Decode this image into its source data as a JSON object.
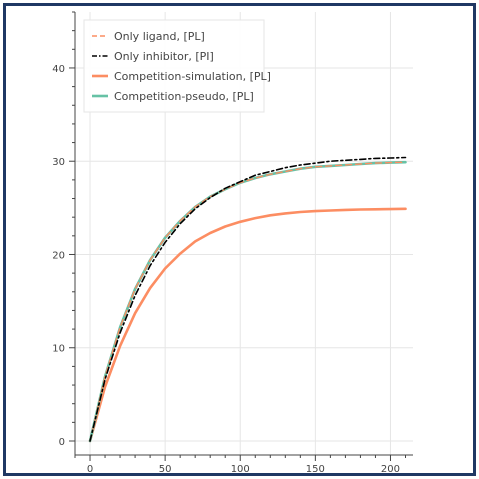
{
  "chart_data": {
    "type": "line",
    "title": "",
    "xlabel": "",
    "ylabel": "",
    "xlim": [
      -10,
      215
    ],
    "ylim": [
      -1.5,
      46
    ],
    "x_ticks": [
      0,
      50,
      100,
      150,
      200
    ],
    "y_ticks": [
      0,
      10,
      20,
      30,
      40
    ],
    "x_tick_labels": [
      "0",
      "50",
      "100",
      "150",
      "200"
    ],
    "y_tick_labels": [
      "0",
      "10",
      "20",
      "30",
      "40"
    ],
    "grid": true,
    "legend_position": "top-left",
    "x": [
      0,
      10,
      20,
      30,
      40,
      50,
      60,
      70,
      80,
      90,
      100,
      110,
      120,
      130,
      140,
      150,
      160,
      170,
      180,
      190,
      200,
      210
    ],
    "series": [
      {
        "name": "Only ligand, [PL]",
        "color": "#fc8d62",
        "style": "dashed",
        "values": [
          0,
          6.9,
          12.2,
          16.3,
          19.4,
          21.8,
          23.6,
          25.1,
          26.2,
          27.0,
          27.7,
          28.2,
          28.6,
          28.9,
          29.2,
          29.4,
          29.5,
          29.6,
          29.7,
          29.8,
          29.85,
          29.9
        ]
      },
      {
        "name": "Only inhibitor, [PI]",
        "color": "#000000",
        "style": "dashdot",
        "values": [
          0,
          6.6,
          11.6,
          15.6,
          18.8,
          21.3,
          23.3,
          24.9,
          26.1,
          27.1,
          27.8,
          28.5,
          28.9,
          29.3,
          29.6,
          29.8,
          30.0,
          30.1,
          30.2,
          30.3,
          30.35,
          30.4
        ]
      },
      {
        "name": "Competition-simulation, [PL]",
        "color": "#fc8d62",
        "style": "solid",
        "values": [
          0,
          5.8,
          10.2,
          13.7,
          16.4,
          18.5,
          20.1,
          21.4,
          22.3,
          23.0,
          23.5,
          23.9,
          24.2,
          24.4,
          24.55,
          24.65,
          24.72,
          24.78,
          24.82,
          24.85,
          24.87,
          24.9
        ]
      },
      {
        "name": "Competition-pseudo, [PL]",
        "color": "#66c2a5",
        "style": "solid",
        "values": [
          0,
          6.9,
          12.2,
          16.3,
          19.4,
          21.8,
          23.6,
          25.1,
          26.2,
          27.0,
          27.7,
          28.2,
          28.6,
          28.9,
          29.2,
          29.4,
          29.5,
          29.6,
          29.7,
          29.8,
          29.85,
          29.9
        ]
      }
    ]
  }
}
